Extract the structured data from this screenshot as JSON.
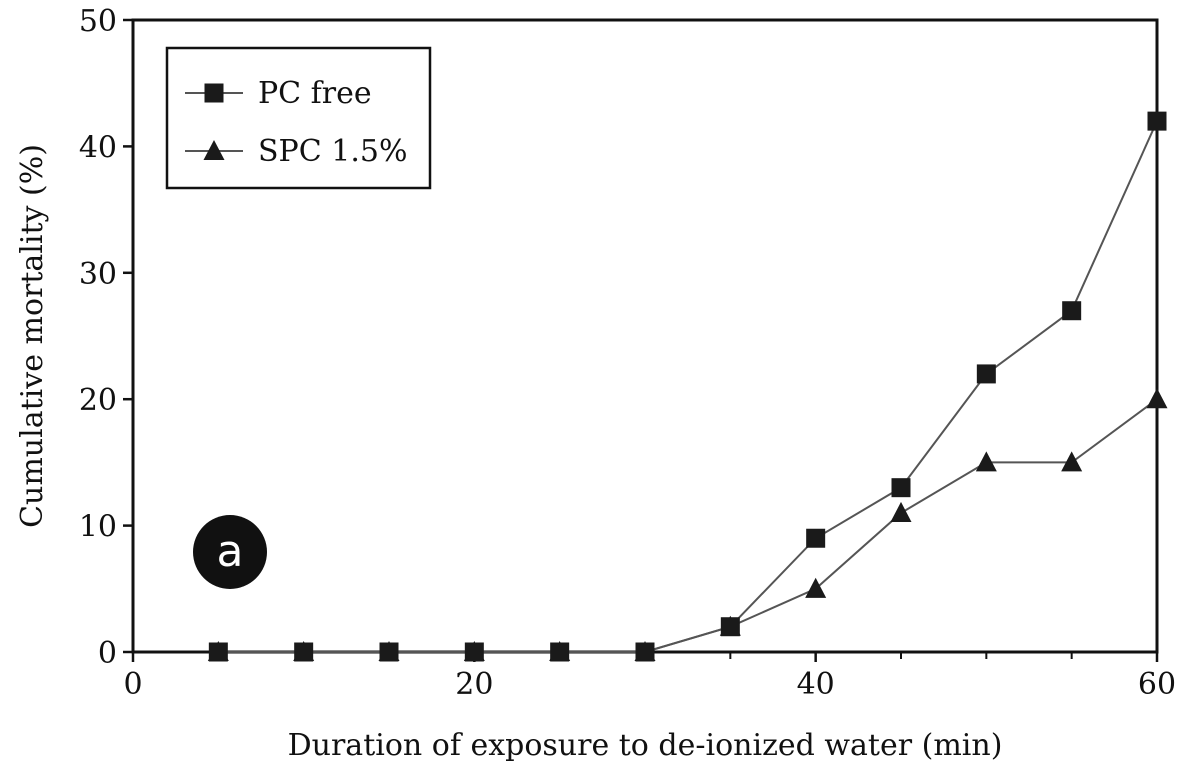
{
  "chart_data": {
    "type": "line",
    "panel_label": "a",
    "xlabel": "Duration of exposure to de-ionized water (min)",
    "ylabel": "Cumulative mortality (%)",
    "xlim": [
      0,
      60
    ],
    "ylim": [
      0,
      50
    ],
    "xticks": [
      0,
      20,
      40,
      60
    ],
    "yticks": [
      0,
      10,
      20,
      30,
      40,
      50
    ],
    "grid": false,
    "legend_position": "top-left",
    "series": [
      {
        "name": "PC free",
        "marker": "square",
        "x": [
          5,
          10,
          15,
          20,
          25,
          30,
          35,
          40,
          45,
          50,
          55,
          60
        ],
        "y": [
          0,
          0,
          0,
          0,
          0,
          0,
          2,
          9,
          13,
          22,
          27,
          42
        ]
      },
      {
        "name": "SPC 1.5%",
        "marker": "triangle",
        "x": [
          5,
          10,
          15,
          20,
          25,
          30,
          35,
          40,
          45,
          50,
          55,
          60
        ],
        "y": [
          0,
          0,
          0,
          0,
          0,
          0,
          2,
          5,
          11,
          15,
          15,
          20
        ]
      }
    ]
  }
}
